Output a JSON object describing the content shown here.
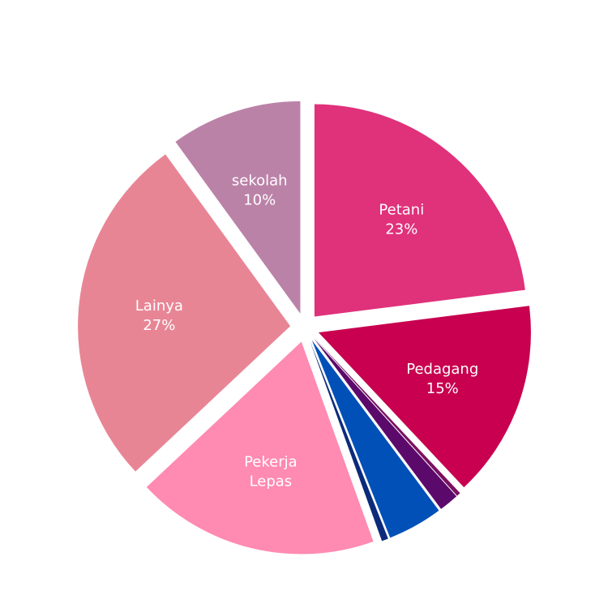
{
  "chart_data": {
    "type": "pie",
    "title": "",
    "slices": [
      {
        "label": "Petani",
        "value": 23,
        "value_label": "23%",
        "color": "#E0317B",
        "exploded": true
      },
      {
        "label": "Pedagang",
        "value": 15,
        "value_label": "15%",
        "color": "#C8004F",
        "exploded": true
      },
      {
        "label": "",
        "value": 0.3,
        "value_label": "",
        "color": "#7A1060",
        "exploded": true
      },
      {
        "label": "",
        "value": 1.5,
        "value_label": "",
        "color": "#5B0A6B",
        "exploded": true
      },
      {
        "label": "",
        "value": 4.2,
        "value_label": "",
        "color": "#0050B8",
        "exploded": true
      },
      {
        "label": "",
        "value": 0.5,
        "value_label": "",
        "color": "#0B2A7A",
        "exploded": true
      },
      {
        "label": "Pekerja Lepas",
        "value": 18.5,
        "value_label": "",
        "color": "#FF8AB2",
        "exploded": true
      },
      {
        "label": "Lainya",
        "value": 27,
        "value_label": "27%",
        "color": "#E88595",
        "exploded": true
      },
      {
        "label": "sekolah",
        "value": 10,
        "value_label": "10%",
        "color": "#BB82A8",
        "exploded": true
      }
    ]
  }
}
